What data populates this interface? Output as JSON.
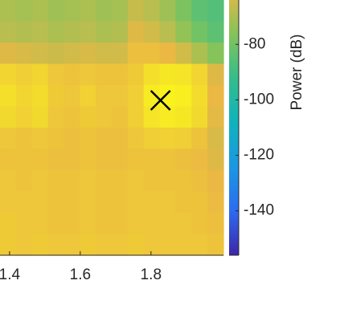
{
  "chart_data": {
    "type": "heatmap",
    "xlim": [
      1.373,
      2.005
    ],
    "xticks": [
      1.4,
      1.6,
      1.8
    ],
    "z": [
      [
        -70,
        -71,
        -70,
        -72,
        -71,
        -70,
        -72,
        -71,
        -66,
        -68,
        -72,
        -78,
        -84,
        -86
      ],
      [
        -68,
        -69,
        -68,
        -70,
        -69,
        -68,
        -70,
        -69,
        -62,
        -64,
        -68,
        -74,
        -80,
        -84
      ],
      [
        -62,
        -63,
        -64,
        -65,
        -64,
        -63,
        -64,
        -64,
        -58,
        -58,
        -60,
        -64,
        -70,
        -76
      ],
      [
        -52,
        -54,
        -52,
        -56,
        -57,
        -56,
        -57,
        -57,
        -55,
        -49,
        -47,
        -48,
        -52,
        -62
      ],
      [
        -49,
        -52,
        -50,
        -55,
        -56,
        -53,
        -56,
        -56,
        -54,
        -46,
        -44,
        -45,
        -50,
        -60
      ],
      [
        -51,
        -53,
        -51,
        -56,
        -57,
        -55,
        -56,
        -57,
        -54,
        -48,
        -46,
        -47,
        -51,
        -61
      ],
      [
        -56,
        -57,
        -56,
        -57,
        -58,
        -57,
        -58,
        -58,
        -56,
        -54,
        -53,
        -54,
        -57,
        -63
      ],
      [
        -57,
        -57,
        -57,
        -58,
        -58,
        -57,
        -58,
        -58,
        -57,
        -57,
        -57,
        -58,
        -59,
        -62
      ],
      [
        -56,
        -57,
        -56,
        -57,
        -57,
        -56,
        -57,
        -57,
        -56,
        -57,
        -57,
        -57,
        -58,
        -60
      ],
      [
        -56,
        -56,
        -56,
        -57,
        -57,
        -56,
        -57,
        -57,
        -56,
        -56,
        -56,
        -57,
        -57,
        -59
      ],
      [
        -55,
        -56,
        -56,
        -57,
        -57,
        -56,
        -57,
        -57,
        -56,
        -56,
        -56,
        -56,
        -57,
        -58
      ],
      [
        -55,
        -56,
        -55,
        -56,
        -56,
        -55,
        -56,
        -56,
        -55,
        -56,
        -56,
        -56,
        -56,
        -57
      ]
    ],
    "clim": [
      -156,
      -44
    ],
    "colormap": [
      "#3e26a8",
      "#2c6cf0",
      "#1a98e2",
      "#10b2bd",
      "#35bd8a",
      "#86c35a",
      "#eab843",
      "#f9f21e"
    ],
    "marker": {
      "x": 1.827
    },
    "colorbar": {
      "label": "Power (dB)",
      "ylim": [
        -156,
        -64
      ],
      "yticks": [
        -80,
        -100,
        -120,
        -140
      ]
    }
  }
}
